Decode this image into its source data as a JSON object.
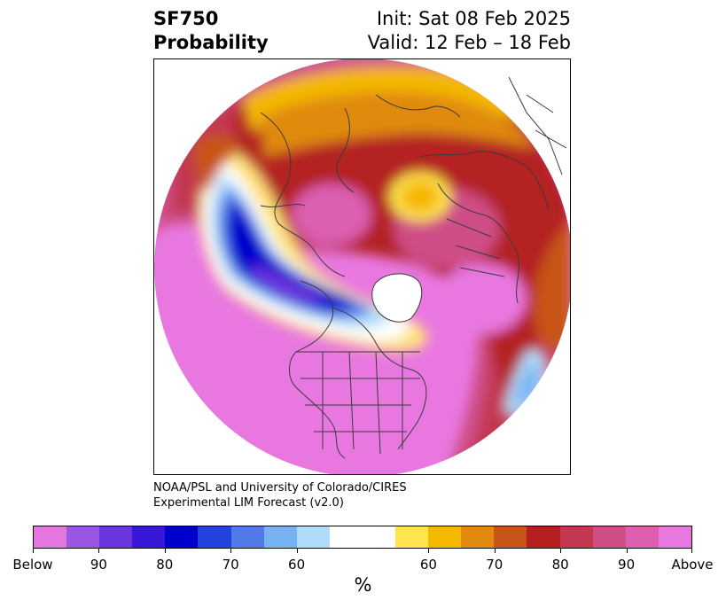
{
  "title": {
    "variable": "SF750",
    "product": "Probability",
    "init": "Init: Sat 08 Feb 2025",
    "valid": "Valid: 12 Feb – 18 Feb"
  },
  "credit": {
    "line1": "NOAA/PSL and University of Colorado/CIRES",
    "line2": "Experimental LIM Forecast (v2.0)"
  },
  "map": {
    "projection": "north polar stereographic",
    "description_regions": [
      "Arctic",
      "North America",
      "Eurasia",
      "North Pacific",
      "North Atlantic"
    ]
  },
  "colorbar": {
    "unit": "%",
    "colors": [
      "#e476e0",
      "#9b55e3",
      "#6b35dd",
      "#3818d6",
      "#0000cc",
      "#2341dd",
      "#4f7ae8",
      "#76b1f2",
      "#aedcfa",
      "#ffffff",
      "#fee54d",
      "#f4b800",
      "#e08a10",
      "#c85518",
      "#b42020",
      "#c23850",
      "#cf4e86",
      "#dc5fb0",
      "#e878e0"
    ],
    "labels": [
      "Below",
      "90",
      "80",
      "70",
      "60",
      "60",
      "70",
      "80",
      "90",
      "Above"
    ]
  }
}
